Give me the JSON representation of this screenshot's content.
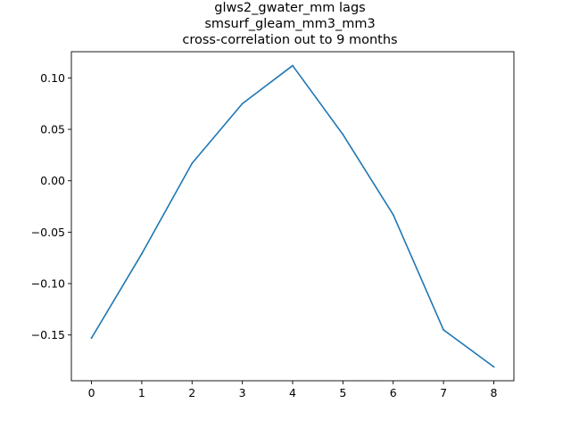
{
  "chart_data": {
    "type": "line",
    "title_lines": [
      "glws2_gwater_mm lags",
      "smsurf_gleam_mm3_mm3",
      "cross-correlation out to 9 months"
    ],
    "xlabel": "",
    "ylabel": "",
    "x": [
      0,
      1,
      2,
      3,
      4,
      5,
      6,
      7,
      8
    ],
    "series": [
      {
        "values": [
          -0.153,
          -0.071,
          0.017,
          0.075,
          0.112,
          0.045,
          -0.033,
          -0.145,
          -0.181
        ]
      }
    ],
    "xlim": [
      -0.4,
      8.4
    ],
    "ylim": [
      -0.1945,
      0.1255
    ],
    "xticks": [
      0,
      1,
      2,
      3,
      4,
      5,
      6,
      7,
      8
    ],
    "yticks": [
      -0.15,
      -0.1,
      -0.05,
      0.0,
      0.05,
      0.1
    ],
    "xtick_labels": [
      "0",
      "1",
      "2",
      "3",
      "4",
      "5",
      "6",
      "7",
      "8"
    ],
    "ytick_labels": [
      "−0.15",
      "−0.10",
      "−0.05",
      "0.00",
      "0.05",
      "0.10"
    ],
    "line_color": "#1f77b4",
    "grid": false,
    "legend": "none"
  }
}
